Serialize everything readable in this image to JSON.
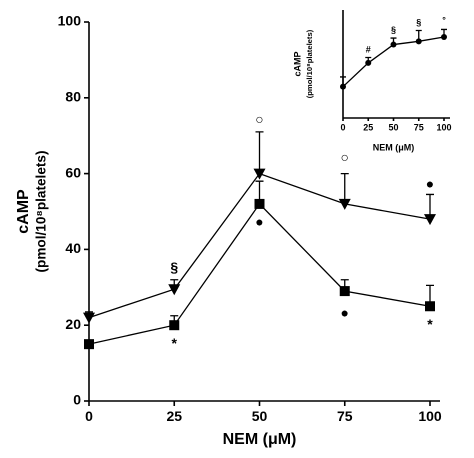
{
  "chart_data": [
    {
      "type": "line",
      "xlabel": "NEM (μM)",
      "ylabel": [
        "cAMP",
        "(pmol/10⁸platelets)"
      ],
      "x": [
        0,
        25,
        50,
        75,
        100
      ],
      "xlim": [
        0,
        100
      ],
      "xticks": [
        0,
        25,
        50,
        75,
        100
      ],
      "ylim": [
        0,
        100
      ],
      "yticks": [
        0,
        20,
        40,
        60,
        80,
        100
      ],
      "series": [
        {
          "marker": "triangle-down",
          "color": "#000000",
          "values": [
            22,
            29.5,
            60,
            52,
            48
          ],
          "errors": [
            1.5,
            2.5,
            11,
            8,
            6.5
          ]
        },
        {
          "marker": "square",
          "color": "#000000",
          "values": [
            15,
            20,
            52,
            29,
            25
          ],
          "errors": [
            1,
            2.5,
            6,
            3,
            5.5
          ]
        }
      ],
      "annotations": [
        {
          "text": "§",
          "x": 25,
          "y": 35
        },
        {
          "text": "*",
          "x": 25,
          "y": 15
        },
        {
          "text": "○",
          "x": 50,
          "y": 74
        },
        {
          "text": "●",
          "x": 50,
          "y": 47
        },
        {
          "text": "○",
          "x": 75,
          "y": 64
        },
        {
          "text": "●",
          "x": 75,
          "y": 23
        },
        {
          "text": "●",
          "x": 100,
          "y": 57
        },
        {
          "text": "*",
          "x": 100,
          "y": 20
        }
      ]
    },
    {
      "type": "line",
      "xlabel": "NEM (μM)",
      "ylabel": [
        "cAMP",
        "(pmol/10⁸platelets)"
      ],
      "x": [
        0,
        25,
        50,
        75,
        100
      ],
      "xlim": [
        0,
        100
      ],
      "xticks": [
        0,
        25,
        50,
        75,
        100
      ],
      "ylim": [
        0,
        10
      ],
      "series": [
        {
          "marker": "circle",
          "color": "#000000",
          "values": [
            2.9,
            5.1,
            6.8,
            7.1,
            7.5
          ],
          "errors": [
            0.9,
            0.5,
            0.6,
            1.0,
            0.7
          ]
        }
      ],
      "annotations": [
        {
          "text": "#",
          "x": 25,
          "y": 6.3
        },
        {
          "text": "§",
          "x": 50,
          "y": 8.1
        },
        {
          "text": "§",
          "x": 75,
          "y": 8.8
        },
        {
          "text": "°",
          "x": 100,
          "y": 9.0
        }
      ]
    }
  ]
}
